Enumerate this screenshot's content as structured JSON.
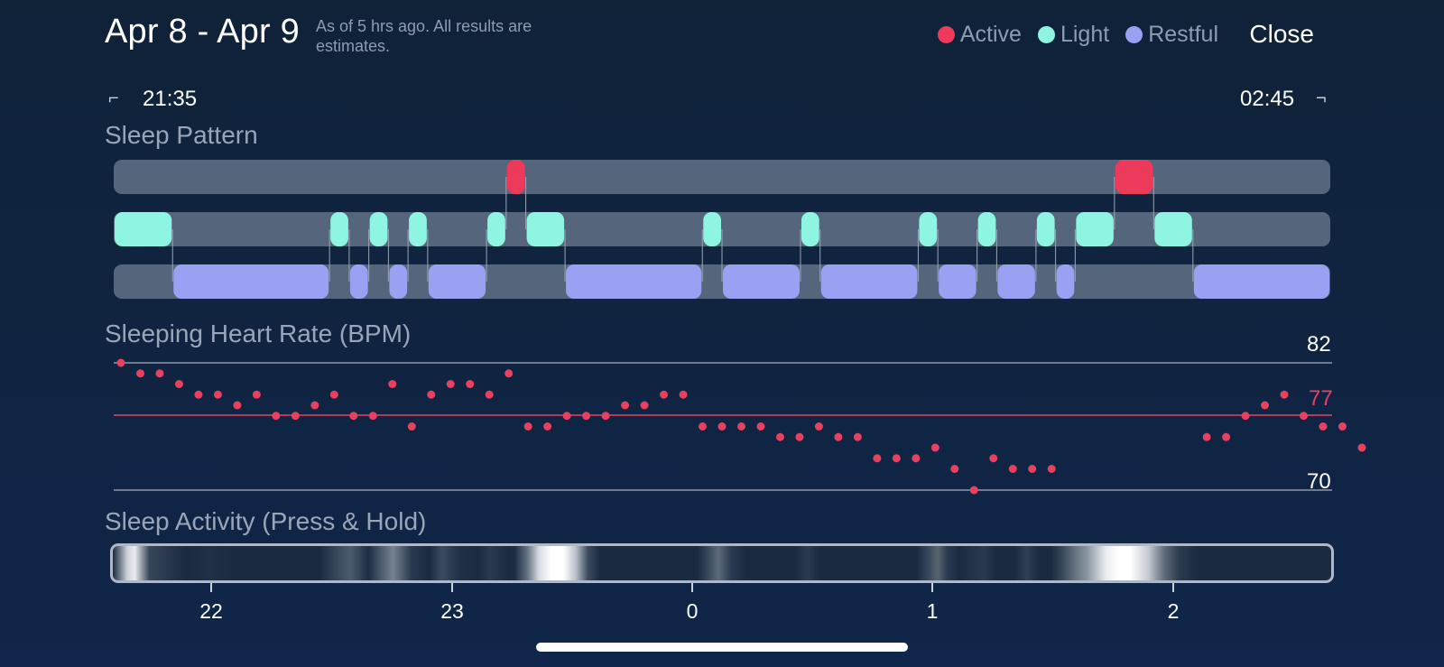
{
  "header": {
    "date_range": "Apr 8 - Apr 9",
    "note": "As of 5 hrs ago. All results are estimates.",
    "close_label": "Close"
  },
  "legend": [
    {
      "label": "Active",
      "color": "#ee3a5a"
    },
    {
      "label": "Light",
      "color": "#8ef5e2"
    },
    {
      "label": "Restful",
      "color": "#9aa0f2"
    }
  ],
  "range": {
    "start": "21:35",
    "end": "02:45",
    "start_icon": "bracket-left-icon",
    "end_icon": "bracket-right-icon"
  },
  "sleep_pattern": {
    "title": "Sleep Pattern",
    "stages": [
      "Active",
      "Light",
      "Restful"
    ]
  },
  "heart_rate": {
    "title": "Sleeping Heart Rate (BPM)",
    "max_label": "82",
    "avg_label": "77",
    "min_label": "70"
  },
  "sleep_activity": {
    "title": "Sleep Activity (Press & Hold)",
    "hour_labels": [
      "22",
      "23",
      "0",
      "1",
      "2"
    ]
  },
  "chart_data": [
    {
      "type": "timeline",
      "title": "Sleep Pattern",
      "time_start": "21:35",
      "time_end": "02:45",
      "segments": [
        {
          "stage": "Light",
          "start": "21:35",
          "end": "21:50"
        },
        {
          "stage": "Restful",
          "start": "21:50",
          "end": "22:30"
        },
        {
          "stage": "Light",
          "start": "22:30",
          "end": "22:35"
        },
        {
          "stage": "Restful",
          "start": "22:35",
          "end": "22:40"
        },
        {
          "stage": "Light",
          "start": "22:40",
          "end": "22:45"
        },
        {
          "stage": "Restful",
          "start": "22:45",
          "end": "22:50"
        },
        {
          "stage": "Light",
          "start": "22:50",
          "end": "22:55"
        },
        {
          "stage": "Restful",
          "start": "22:55",
          "end": "23:10"
        },
        {
          "stage": "Light",
          "start": "23:10",
          "end": "23:15"
        },
        {
          "stage": "Active",
          "start": "23:15",
          "end": "23:20"
        },
        {
          "stage": "Light",
          "start": "23:20",
          "end": "23:30"
        },
        {
          "stage": "Restful",
          "start": "23:30",
          "end": "00:05"
        },
        {
          "stage": "Light",
          "start": "00:05",
          "end": "00:10"
        },
        {
          "stage": "Restful",
          "start": "00:10",
          "end": "00:30"
        },
        {
          "stage": "Light",
          "start": "00:30",
          "end": "00:35"
        },
        {
          "stage": "Restful",
          "start": "00:35",
          "end": "01:00"
        },
        {
          "stage": "Light",
          "start": "01:00",
          "end": "01:05"
        },
        {
          "stage": "Restful",
          "start": "01:05",
          "end": "01:15"
        },
        {
          "stage": "Light",
          "start": "01:15",
          "end": "01:20"
        },
        {
          "stage": "Restful",
          "start": "01:20",
          "end": "01:30"
        },
        {
          "stage": "Light",
          "start": "01:30",
          "end": "01:35"
        },
        {
          "stage": "Restful",
          "start": "01:35",
          "end": "01:40"
        },
        {
          "stage": "Light",
          "start": "01:40",
          "end": "01:50"
        },
        {
          "stage": "Active",
          "start": "01:50",
          "end": "02:00"
        },
        {
          "stage": "Light",
          "start": "02:00",
          "end": "02:10"
        },
        {
          "stage": "Restful",
          "start": "02:10",
          "end": "02:45"
        }
      ]
    },
    {
      "type": "scatter",
      "title": "Sleeping Heart Rate (BPM)",
      "ylim": [
        70,
        82
      ],
      "reference_lines": [
        82,
        77,
        70
      ],
      "average": 77,
      "x_start": "21:35",
      "x_step_minutes": 5,
      "values": [
        82,
        81,
        81,
        80,
        79,
        79,
        78,
        79,
        77,
        77,
        78,
        79,
        77,
        77,
        80,
        76,
        79,
        80,
        80,
        79,
        81,
        76,
        76,
        77,
        77,
        77,
        78,
        78,
        79,
        79,
        76,
        76,
        76,
        76,
        75,
        75,
        76,
        75,
        75,
        73,
        73,
        73,
        74,
        72,
        70,
        73,
        72,
        72,
        72,
        null,
        null,
        null,
        null,
        null,
        null,
        null,
        75,
        75,
        77,
        78,
        79,
        77,
        76,
        76,
        74
      ]
    }
  ]
}
